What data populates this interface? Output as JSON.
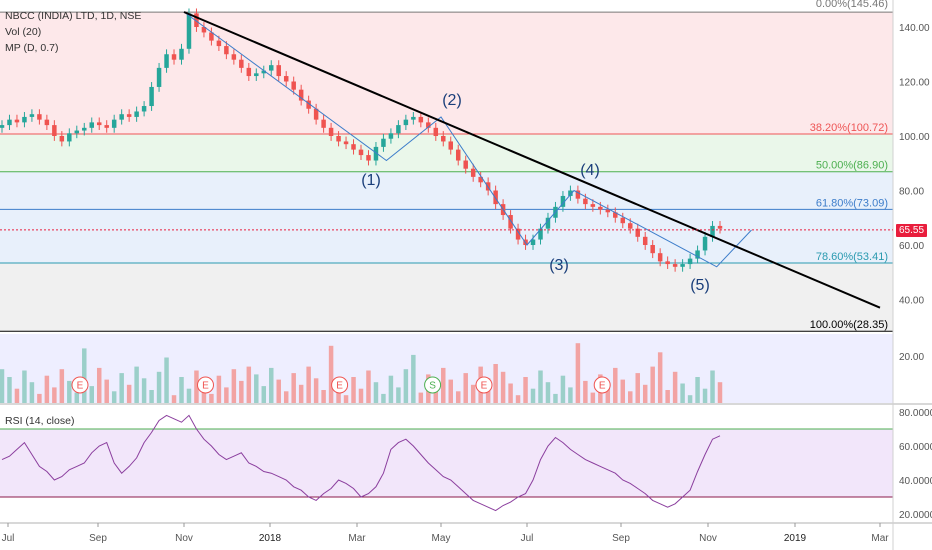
{
  "header": {
    "symbol_line": "NBCC (INDIA) LTD, 1D, NSE",
    "vol_label": "Vol (20)",
    "mp_label": "MP (D, 0.7)",
    "rsi_label": "RSI (14, close)"
  },
  "price_badge": "65.55",
  "colors": {
    "fib_red_zone": "#fde8ea",
    "fib_green_zone": "#eaf7ea",
    "fib_blue_zone": "#e8f0fb",
    "fib_gray_zone": "#f0f0f0",
    "volume_bg": "#eeeeff",
    "rsi_bg": "#f2e6fa",
    "candle_up": "#26a69a",
    "candle_down": "#ef5350",
    "rsi_line": "#8b3f9e",
    "trendline": "#000000",
    "wave_line": "#3d7dca"
  },
  "chart_data": {
    "type": "candlestick",
    "price_axis": {
      "ticks": [
        40,
        60,
        80,
        100,
        120,
        140
      ],
      "tick_labels": [
        "40.00",
        "60.00",
        "80.00",
        "100.00",
        "120.00",
        "140.00"
      ]
    },
    "volume_axis": {
      "ticks": [
        20
      ],
      "tick_labels": [
        "20.00"
      ]
    },
    "rsi_axis": {
      "ticks": [
        20,
        40,
        60,
        80
      ],
      "tick_labels": [
        "20.0000",
        "40.0000",
        "60.0000",
        "80.0000"
      ],
      "bands": [
        30,
        70
      ]
    },
    "x_axis": {
      "labels": [
        "Jul",
        "Sep",
        "Nov",
        "2018",
        "Mar",
        "May",
        "Jul",
        "Sep",
        "Nov",
        "2019",
        "Mar"
      ]
    },
    "fib_levels": [
      {
        "label": "0.00%(145.46)",
        "value": 145.46,
        "color": "#787878"
      },
      {
        "label": "38.20%(100.72)",
        "value": 100.72,
        "color": "#e55"
      },
      {
        "label": "50.00%(86.90)",
        "value": 86.9,
        "color": "#4caf50"
      },
      {
        "label": "61.80%(73.09)",
        "value": 73.09,
        "color": "#3d7dca"
      },
      {
        "label": "78.60%(53.41)",
        "value": 53.41,
        "color": "#2a9ab0"
      },
      {
        "label": "100.00%(28.35)",
        "value": 28.35,
        "color": "#000000"
      }
    ],
    "wave_labels": [
      {
        "label": "(1)",
        "index": 0
      },
      {
        "label": "(2)",
        "index": 1
      },
      {
        "label": "(3)",
        "index": 2
      },
      {
        "label": "(4)",
        "index": 3
      },
      {
        "label": "(5)",
        "index": 4
      }
    ],
    "wave_points": [
      {
        "t": 2.0,
        "p": 145.5
      },
      {
        "t": 4.35,
        "p": 91
      },
      {
        "t": 5.0,
        "p": 107
      },
      {
        "t": 6.0,
        "p": 60
      },
      {
        "t": 6.5,
        "p": 80
      },
      {
        "t": 8.1,
        "p": 52
      },
      {
        "t": 8.5,
        "p": 65.5
      }
    ],
    "trendline": [
      {
        "t": 2.0,
        "p": 145.5
      },
      {
        "t": 10.0,
        "p": 37
      }
    ],
    "event_markers": [
      {
        "t": 0.8,
        "label": "E"
      },
      {
        "t": 2.25,
        "label": "E"
      },
      {
        "t": 3.8,
        "label": "E"
      },
      {
        "t": 4.9,
        "label": "S"
      },
      {
        "t": 5.5,
        "label": "E"
      },
      {
        "t": 6.8,
        "label": "E"
      }
    ],
    "price_closes": [
      104,
      106,
      105,
      107,
      108,
      106,
      104,
      100,
      98,
      101,
      102,
      103,
      105,
      104,
      103,
      106,
      108,
      107,
      109,
      111,
      118,
      125,
      130,
      128,
      132,
      145,
      140,
      138,
      135,
      133,
      130,
      128,
      125,
      122,
      123,
      124,
      126,
      122,
      120,
      117,
      113,
      110,
      106,
      103,
      100,
      98,
      97,
      95,
      93,
      91,
      96,
      99,
      101,
      104,
      106,
      107,
      105,
      103,
      100,
      98,
      95,
      91,
      88,
      85,
      83,
      80,
      75,
      71,
      66,
      62,
      60,
      62,
      66,
      70,
      74,
      78,
      80,
      77,
      75,
      74,
      73,
      72,
      70,
      68,
      66,
      63,
      60,
      57,
      54,
      53,
      52,
      53,
      55,
      58,
      63,
      67,
      66
    ],
    "rsi_values": [
      52,
      54,
      58,
      62,
      55,
      48,
      45,
      40,
      42,
      46,
      48,
      50,
      56,
      60,
      62,
      50,
      44,
      48,
      53,
      62,
      68,
      75,
      78,
      76,
      74,
      78,
      70,
      64,
      60,
      55,
      52,
      54,
      56,
      50,
      48,
      45,
      44,
      42,
      40,
      36,
      34,
      30,
      28,
      32,
      35,
      40,
      38,
      35,
      30,
      32,
      36,
      44,
      58,
      62,
      64,
      60,
      55,
      50,
      46,
      42,
      40,
      36,
      32,
      28,
      26,
      24,
      22,
      25,
      27,
      30,
      32,
      40,
      52,
      60,
      65,
      62,
      58,
      55,
      52,
      50,
      48,
      46,
      44,
      40,
      38,
      35,
      32,
      28,
      26,
      24,
      26,
      30,
      34,
      45,
      55,
      64,
      66
    ]
  }
}
